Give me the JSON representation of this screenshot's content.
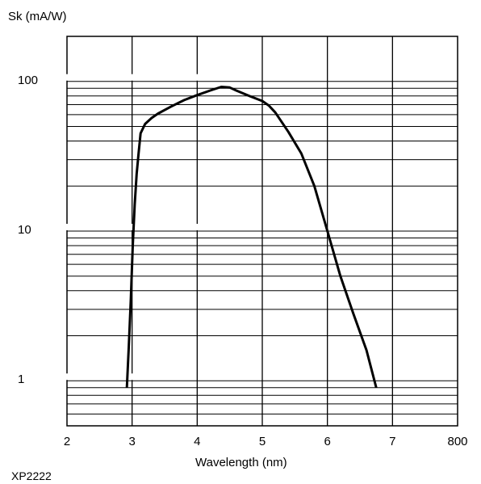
{
  "chart_data": {
    "type": "line",
    "ylabel": "Sk (mA/W)",
    "xlabel": "Wavelength (nm)",
    "figure_code": "XP2222",
    "y_scale": "log",
    "ylim": [
      0.5,
      200
    ],
    "xlim": [
      200,
      800
    ],
    "x_tick_labels": [
      "2",
      "3",
      "4",
      "5",
      "6",
      "7",
      "800"
    ],
    "x_tick_values": [
      200,
      300,
      400,
      500,
      600,
      700,
      800
    ],
    "y_tick_labels": [
      "1",
      "10",
      "100"
    ],
    "y_tick_values": [
      1,
      10,
      100
    ],
    "grid": true,
    "series": [
      {
        "x": [
          292,
          295,
          298,
          301,
          304,
          307,
          310,
          313,
          320,
          330,
          340,
          360,
          380,
          400,
          420,
          437,
          450,
          460,
          480,
          500,
          510,
          520,
          540,
          560,
          580,
          600,
          620,
          640,
          660,
          675
        ],
        "y": [
          0.9,
          1.7,
          3.5,
          8,
          15,
          24,
          33,
          45,
          52,
          57,
          61,
          68,
          75,
          81,
          87,
          92,
          91,
          87,
          80,
          74,
          69,
          62,
          46,
          33,
          20,
          10,
          5,
          2.8,
          1.6,
          0.9
        ]
      }
    ]
  }
}
